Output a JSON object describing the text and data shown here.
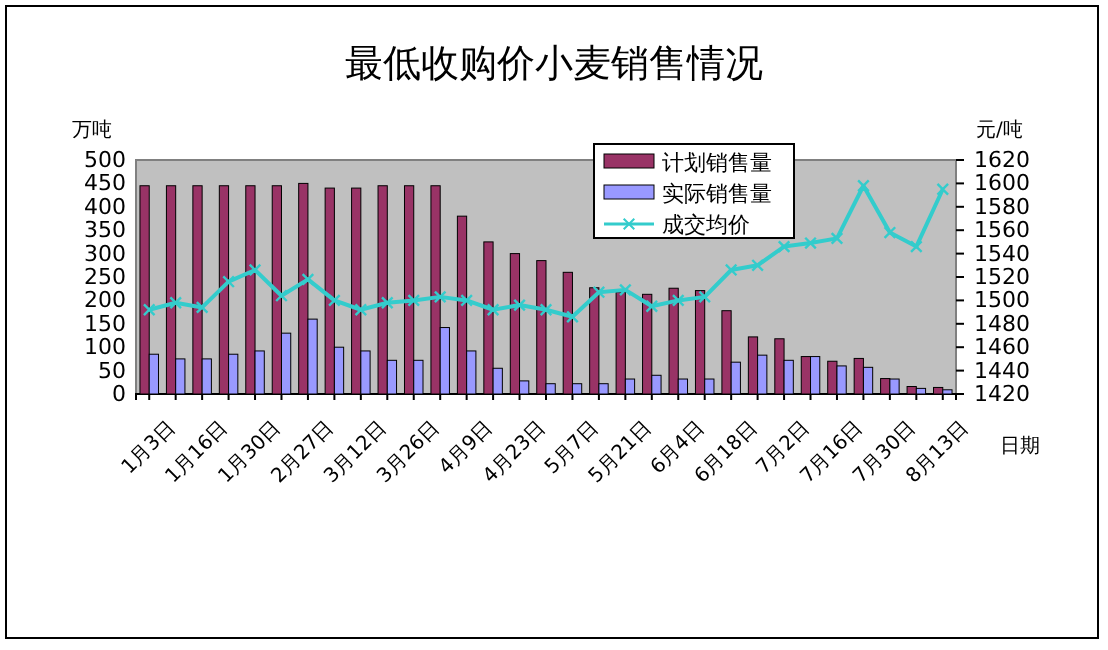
{
  "chart_data": {
    "type": "bar",
    "title": "最低收购价小麦销售情况",
    "xlabel": "日期",
    "ylabel": "万吨",
    "y2label": "元/吨",
    "categories": [
      "1月3日",
      null,
      "1月16日",
      null,
      "1月30日",
      null,
      "2月27日",
      null,
      "3月12日",
      null,
      "3月26日",
      null,
      "4月9日",
      null,
      "4月23日",
      null,
      "5月7日",
      null,
      "5月21日",
      null,
      "6月4日",
      null,
      "6月18日",
      null,
      "7月2日",
      null,
      "7月16日",
      null,
      "7月30日",
      null,
      "8月13日"
    ],
    "series": [
      {
        "name": "计划销售量",
        "color": "#993366",
        "values": [
          445,
          445,
          445,
          445,
          445,
          445,
          450,
          440,
          440,
          445,
          445,
          445,
          380,
          325,
          300,
          285,
          260,
          227,
          218,
          213,
          226,
          221,
          178,
          122,
          118,
          80,
          70,
          76,
          33,
          16,
          14
        ]
      },
      {
        "name": "实际销售量",
        "color": "#9999ff",
        "values": [
          85,
          75,
          75,
          85,
          92,
          130,
          160,
          100,
          92,
          72,
          72,
          142,
          92,
          55,
          28,
          22,
          22,
          22,
          32,
          40,
          32,
          32,
          68,
          83,
          72,
          80,
          60,
          57,
          32,
          12,
          9
        ]
      },
      {
        "name": "成交均价",
        "type": "line",
        "axis": "y2",
        "color": "#33cccc",
        "marker": "cross",
        "values": [
          1492,
          1498,
          1494,
          1516,
          1526,
          1504,
          1518,
          1500,
          1492,
          1498,
          1500,
          1503,
          1500,
          1492,
          1496,
          1492,
          1486,
          1507,
          1509,
          1495,
          1500,
          1503,
          1526,
          1530,
          1546,
          1549,
          1553,
          1598,
          1558,
          1546,
          1595
        ]
      }
    ],
    "ylim": [
      0,
      500
    ],
    "yticks": [
      0,
      50,
      100,
      150,
      200,
      250,
      300,
      350,
      400,
      450,
      500
    ],
    "y2lim": [
      1420,
      1620
    ],
    "y2ticks": [
      1420,
      1440,
      1460,
      1480,
      1500,
      1520,
      1540,
      1560,
      1580,
      1600,
      1620
    ],
    "legend": "top right",
    "grid": false
  }
}
